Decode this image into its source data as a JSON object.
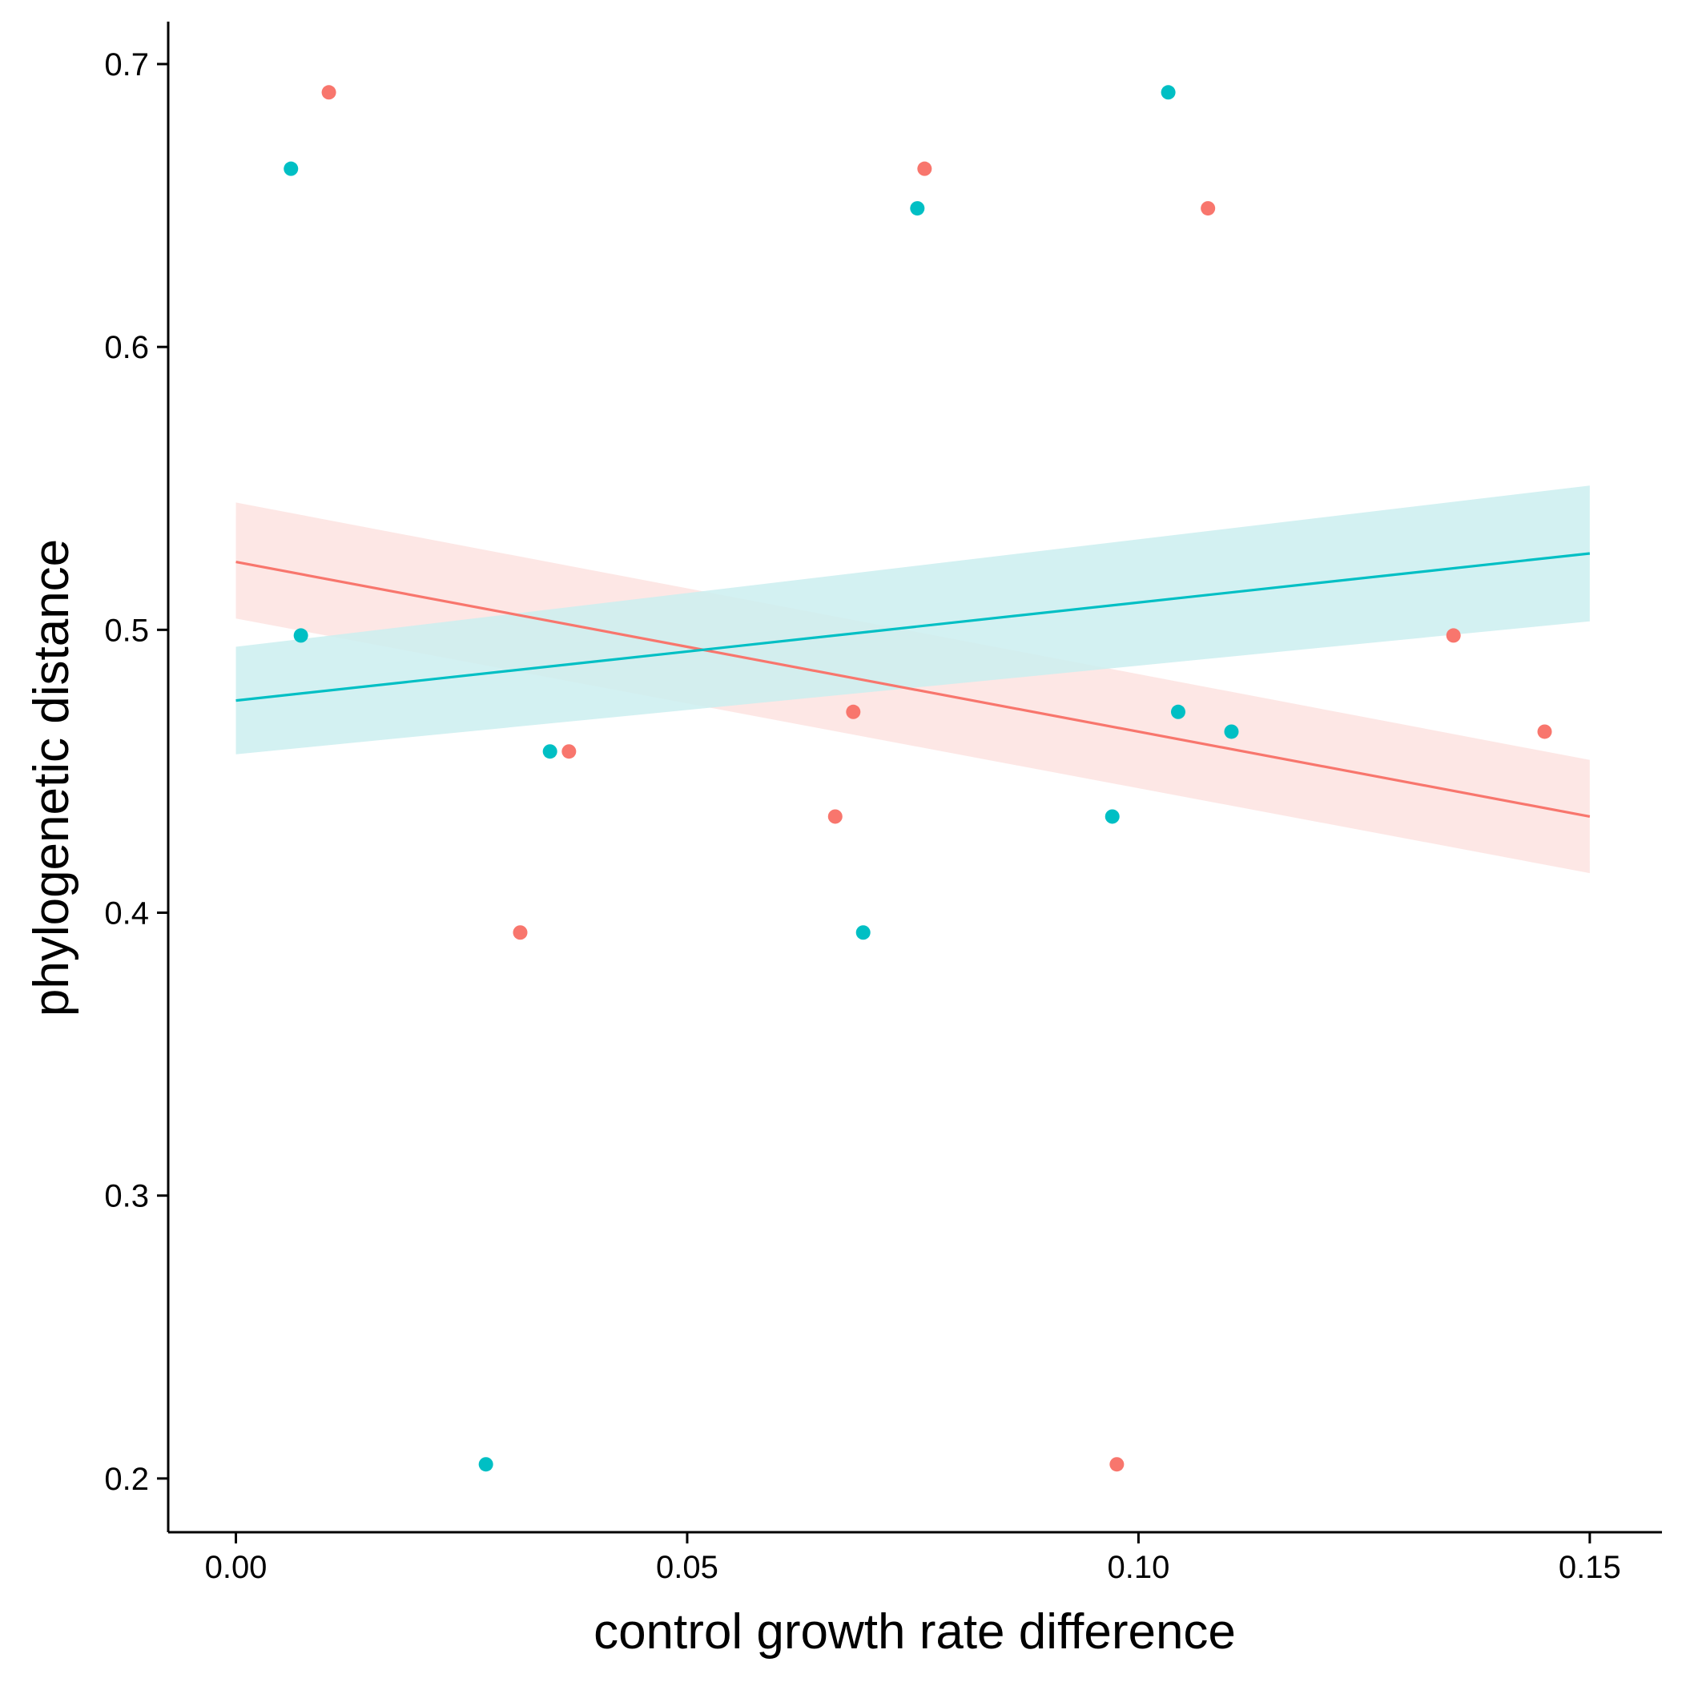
{
  "chart_data": {
    "type": "scatter",
    "xlabel": "control growth rate difference",
    "ylabel": "phylogenetic distance",
    "xlim": [
      -0.0075,
      0.158
    ],
    "ylim": [
      0.181,
      0.715
    ],
    "xticks": [
      0.0,
      0.05,
      0.1,
      0.15
    ],
    "xtick_labels": [
      "0.00",
      "0.05",
      "0.10",
      "0.15"
    ],
    "yticks": [
      0.2,
      0.3,
      0.4,
      0.5,
      0.6,
      0.7
    ],
    "ytick_labels": [
      "0.2",
      "0.3",
      "0.4",
      "0.5",
      "0.6",
      "0.7"
    ],
    "grid": false,
    "legend": "none",
    "series": [
      {
        "color": "#F8766D",
        "points": [
          {
            "x": 0.0103,
            "y": 0.69
          },
          {
            "x": 0.0763,
            "y": 0.663
          },
          {
            "x": 0.1077,
            "y": 0.649
          },
          {
            "x": 0.1349,
            "y": 0.498
          },
          {
            "x": 0.0684,
            "y": 0.471
          },
          {
            "x": 0.145,
            "y": 0.464
          },
          {
            "x": 0.0369,
            "y": 0.457
          },
          {
            "x": 0.0664,
            "y": 0.434
          },
          {
            "x": 0.0315,
            "y": 0.393
          },
          {
            "x": 0.0976,
            "y": 0.205
          }
        ],
        "fit": {
          "x": [
            0.0,
            0.15
          ],
          "y": [
            0.524,
            0.434
          ],
          "lower": [
            0.504,
            0.414
          ],
          "upper": [
            0.545,
            0.454
          ],
          "band_color": "#FDE3E1"
        }
      },
      {
        "color": "#00BFC4",
        "points": [
          {
            "x": 0.0061,
            "y": 0.663
          },
          {
            "x": 0.1033,
            "y": 0.69
          },
          {
            "x": 0.0755,
            "y": 0.649
          },
          {
            "x": 0.0072,
            "y": 0.498
          },
          {
            "x": 0.1044,
            "y": 0.471
          },
          {
            "x": 0.1103,
            "y": 0.464
          },
          {
            "x": 0.0348,
            "y": 0.457
          },
          {
            "x": 0.0971,
            "y": 0.434
          },
          {
            "x": 0.0695,
            "y": 0.393
          },
          {
            "x": 0.0277,
            "y": 0.205
          }
        ],
        "fit": {
          "x": [
            0.0,
            0.15
          ],
          "y": [
            0.475,
            0.527
          ],
          "lower": [
            0.456,
            0.503
          ],
          "upper": [
            0.494,
            0.551
          ],
          "band_color": "#CBEFF0"
        }
      }
    ]
  }
}
